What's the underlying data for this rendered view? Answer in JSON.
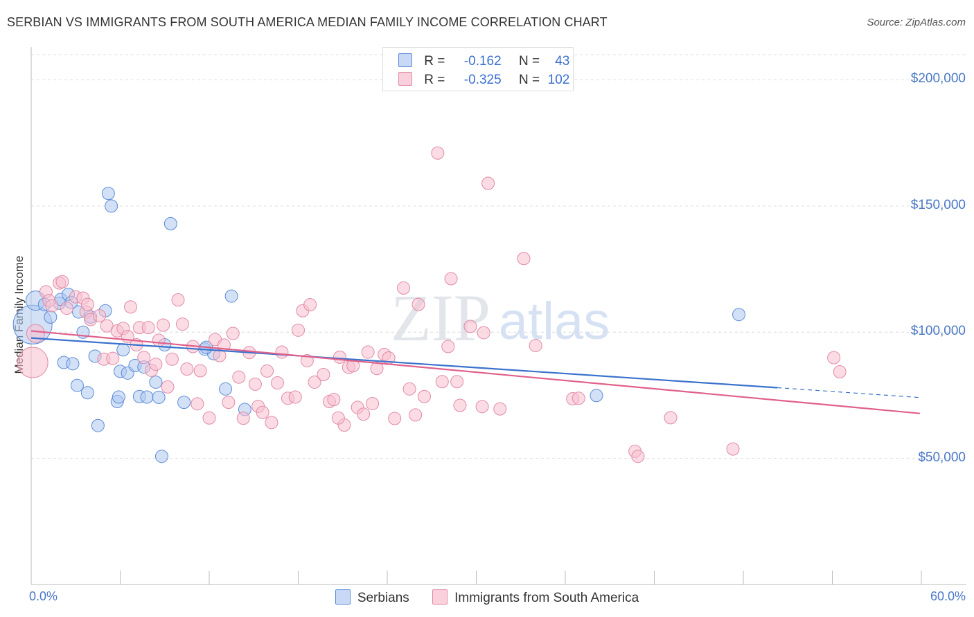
{
  "chart_data": {
    "type": "scatter",
    "title": "SERBIAN VS IMMIGRANTS FROM SOUTH AMERICA MEDIAN FAMILY INCOME CORRELATION CHART",
    "source": "Source: ZipAtlas.com",
    "ylabel": "Median Family Income",
    "xlabel": "",
    "xlim": [
      0,
      60
    ],
    "ylim": [
      0,
      210000
    ],
    "x_tick_labels": {
      "left": "0.0%",
      "right": "60.0%"
    },
    "y_ticks": [
      {
        "value": 50000,
        "label": "$50,000"
      },
      {
        "value": 100000,
        "label": "$100,000"
      },
      {
        "value": 150000,
        "label": "$150,000"
      },
      {
        "value": 200000,
        "label": "$200,000"
      }
    ],
    "watermark": {
      "zip": "ZIP",
      "atlas": "atlas"
    },
    "legend": {
      "rows": [
        {
          "r_label": "R =",
          "r": "-0.162",
          "n_label": "N =",
          "n": "43",
          "color": "#aec8f0",
          "border": "#5b8bd6"
        },
        {
          "r_label": "R =",
          "r": "-0.325",
          "n_label": "N =",
          "n": "102",
          "color": "#f7bfd0",
          "border": "#e08aa6"
        }
      ]
    },
    "series": [
      {
        "name": "Serbians",
        "color": "#aec8f0",
        "stroke": "#5b8bd6",
        "line_color": "#3a72cc",
        "trend": {
          "x0": 0,
          "y0": 97700,
          "x1": 50.3,
          "y1": 78000,
          "dash_x1": 59.9,
          "dash_y1": 74100
        },
        "points": [
          [
            0.1,
            103000,
            28
          ],
          [
            0.3,
            112500,
            14
          ],
          [
            0.9,
            111000,
            9
          ],
          [
            1.3,
            106000,
            9
          ],
          [
            1.9,
            111500,
            9
          ],
          [
            2.0,
            113000,
            9
          ],
          [
            2.5,
            115000,
            9
          ],
          [
            3.2,
            108000,
            9
          ],
          [
            3.5,
            100000,
            9
          ],
          [
            2.2,
            88000,
            9
          ],
          [
            2.8,
            87500,
            9
          ],
          [
            4.3,
            90500,
            9
          ],
          [
            3.1,
            78900,
            9
          ],
          [
            3.8,
            76000,
            9
          ],
          [
            5.0,
            108500,
            9
          ],
          [
            5.2,
            155000,
            9
          ],
          [
            5.4,
            150000,
            9
          ],
          [
            9.4,
            143000,
            9
          ],
          [
            4.5,
            63000,
            9
          ],
          [
            5.8,
            72500,
            9
          ],
          [
            5.9,
            74300,
            9
          ],
          [
            6.0,
            84500,
            9
          ],
          [
            6.5,
            83800,
            9
          ],
          [
            7.0,
            86800,
            9
          ],
          [
            7.3,
            74500,
            9
          ],
          [
            7.6,
            86200,
            9
          ],
          [
            7.8,
            74300,
            9
          ],
          [
            8.4,
            80200,
            9
          ],
          [
            8.6,
            74200,
            9
          ],
          [
            8.8,
            50800,
            9
          ],
          [
            10.3,
            72200,
            9
          ],
          [
            11.7,
            93300,
            9
          ],
          [
            12.3,
            91500,
            9
          ],
          [
            13.1,
            77500,
            9
          ],
          [
            13.5,
            114300,
            9
          ],
          [
            14.4,
            69400,
            9
          ],
          [
            38.1,
            74900,
            9
          ],
          [
            47.7,
            107000,
            9
          ],
          [
            4.0,
            106000,
            9
          ],
          [
            2.7,
            111800,
            9
          ],
          [
            11.8,
            94000,
            9
          ],
          [
            6.2,
            93000,
            9
          ],
          [
            9.0,
            95000,
            9
          ]
        ]
      },
      {
        "name": "Immigrants from South America",
        "color": "#f7bfd0",
        "stroke": "#e08aa6",
        "line_color": "#e0608a",
        "trend": {
          "x0": 0,
          "y0": 100500,
          "x1": 59.9,
          "y1": 67800
        },
        "points": [
          [
            0.1,
            88000,
            22
          ],
          [
            0.3,
            99500,
            13
          ],
          [
            1.0,
            116000,
            9
          ],
          [
            1.2,
            112500,
            9
          ],
          [
            1.4,
            110500,
            9
          ],
          [
            1.9,
            119500,
            9
          ],
          [
            2.1,
            120000,
            9
          ],
          [
            2.4,
            109500,
            9
          ],
          [
            3.0,
            114000,
            9
          ],
          [
            3.5,
            113500,
            9
          ],
          [
            3.7,
            108000,
            9
          ],
          [
            4.0,
            105000,
            9
          ],
          [
            3.8,
            111000,
            9
          ],
          [
            4.6,
            106500,
            9
          ],
          [
            4.9,
            89300,
            9
          ],
          [
            5.1,
            102500,
            9
          ],
          [
            5.5,
            89600,
            9
          ],
          [
            5.8,
            100500,
            9
          ],
          [
            6.2,
            101500,
            9
          ],
          [
            6.5,
            98300,
            9
          ],
          [
            6.7,
            110000,
            9
          ],
          [
            7.1,
            95000,
            9
          ],
          [
            7.3,
            101800,
            9
          ],
          [
            7.6,
            90000,
            9
          ],
          [
            7.9,
            101800,
            9
          ],
          [
            8.1,
            84900,
            9
          ],
          [
            8.4,
            87300,
            9
          ],
          [
            8.6,
            96800,
            9
          ],
          [
            8.9,
            102800,
            9
          ],
          [
            9.2,
            78300,
            9
          ],
          [
            9.5,
            89300,
            9
          ],
          [
            9.9,
            112800,
            9
          ],
          [
            10.2,
            103200,
            9
          ],
          [
            10.5,
            85400,
            9
          ],
          [
            10.9,
            94300,
            9
          ],
          [
            11.2,
            71600,
            9
          ],
          [
            11.4,
            84700,
            9
          ],
          [
            12.0,
            66000,
            9
          ],
          [
            12.4,
            97100,
            9
          ],
          [
            12.7,
            90700,
            9
          ],
          [
            13.0,
            94900,
            9
          ],
          [
            13.3,
            72200,
            9
          ],
          [
            13.6,
            99500,
            9
          ],
          [
            14.0,
            82200,
            9
          ],
          [
            14.3,
            65900,
            9
          ],
          [
            14.7,
            91900,
            9
          ],
          [
            15.1,
            79400,
            9
          ],
          [
            15.3,
            70600,
            9
          ],
          [
            15.6,
            68200,
            9
          ],
          [
            15.9,
            84600,
            9
          ],
          [
            16.2,
            64200,
            9
          ],
          [
            16.6,
            79900,
            9
          ],
          [
            16.9,
            92100,
            9
          ],
          [
            17.3,
            73800,
            9
          ],
          [
            17.8,
            74300,
            9
          ],
          [
            18.0,
            100800,
            9
          ],
          [
            18.3,
            108500,
            9
          ],
          [
            18.6,
            88700,
            9
          ],
          [
            18.8,
            110900,
            9
          ],
          [
            19.1,
            80200,
            9
          ],
          [
            19.7,
            83200,
            9
          ],
          [
            20.1,
            72500,
            9
          ],
          [
            20.4,
            73300,
            9
          ],
          [
            20.8,
            90100,
            9
          ],
          [
            21.1,
            63200,
            9
          ],
          [
            21.4,
            86100,
            9
          ],
          [
            21.7,
            86700,
            9
          ],
          [
            22.0,
            70200,
            9
          ],
          [
            22.4,
            67500,
            9
          ],
          [
            22.7,
            92100,
            9
          ],
          [
            23.0,
            71700,
            9
          ],
          [
            23.3,
            85600,
            9
          ],
          [
            23.8,
            91200,
            9
          ],
          [
            24.1,
            89800,
            9
          ],
          [
            24.5,
            65800,
            9
          ],
          [
            25.1,
            117500,
            9
          ],
          [
            25.5,
            77500,
            9
          ],
          [
            25.9,
            67200,
            9
          ],
          [
            26.1,
            111000,
            9
          ],
          [
            26.5,
            74500,
            9
          ],
          [
            27.4,
            171000,
            9
          ],
          [
            27.7,
            80400,
            9
          ],
          [
            28.1,
            94300,
            9
          ],
          [
            28.3,
            121200,
            9
          ],
          [
            28.7,
            80400,
            9
          ],
          [
            28.9,
            71000,
            9
          ],
          [
            29.6,
            102300,
            9
          ],
          [
            30.5,
            99800,
            9
          ],
          [
            30.8,
            159000,
            9
          ],
          [
            31.6,
            69600,
            9
          ],
          [
            33.2,
            129200,
            9
          ],
          [
            34.0,
            94700,
            9
          ],
          [
            36.5,
            73600,
            9
          ],
          [
            40.7,
            52800,
            9
          ],
          [
            40.9,
            50800,
            9
          ],
          [
            43.1,
            66100,
            9
          ],
          [
            47.3,
            53700,
            9
          ],
          [
            54.1,
            89900,
            9
          ],
          [
            54.5,
            84300,
            9
          ],
          [
            30.4,
            70500,
            9
          ],
          [
            20.7,
            66000,
            9
          ],
          [
            36.9,
            73800,
            9
          ]
        ]
      }
    ]
  }
}
